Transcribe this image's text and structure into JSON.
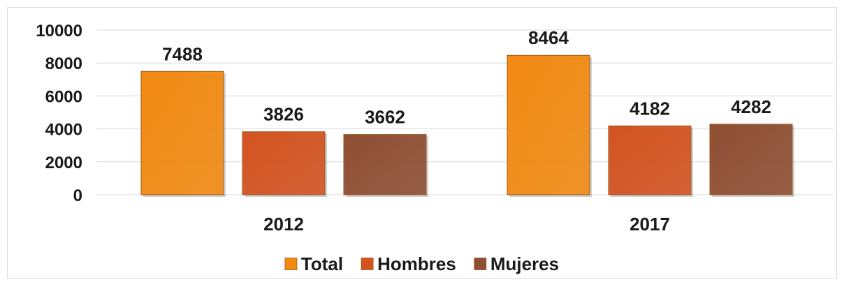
{
  "chart_data": {
    "type": "bar",
    "categories": [
      "2012",
      "2017"
    ],
    "series": [
      {
        "name": "Total",
        "values": [
          7488,
          8464
        ],
        "color": "#f28a12"
      },
      {
        "name": "Hombres",
        "values": [
          3826,
          4182
        ],
        "color": "#d35320"
      },
      {
        "name": "Mujeres",
        "values": [
          3662,
          4282
        ],
        "color": "#8e4e33"
      }
    ],
    "yticks": [
      "0",
      "2000",
      "4000",
      "6000",
      "8000",
      "10000"
    ],
    "ylim": [
      0,
      10000
    ],
    "grid": true,
    "legend": "bottom-center",
    "data_labels": true
  }
}
